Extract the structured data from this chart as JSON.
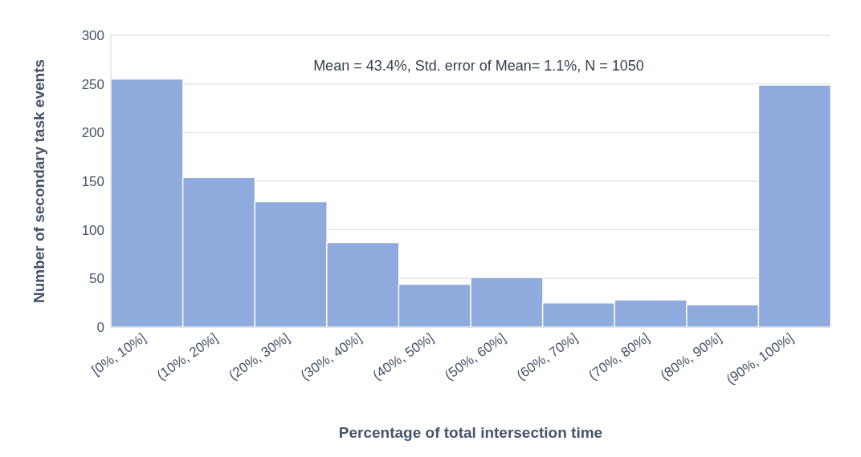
{
  "chart_data": {
    "type": "bar",
    "categories": [
      "[0%, 10%]",
      "(10%, 20%]",
      "(20%, 30%]",
      "(30%, 40%]",
      "(40%, 50%]",
      "(50%, 60%]",
      "(60%, 70%]",
      "(70%, 80%]",
      "(80%, 90%]",
      "(90%, 100%]"
    ],
    "values": [
      255,
      154,
      129,
      87,
      44,
      51,
      25,
      28,
      23,
      249
    ],
    "color": "#8faadc",
    "xlabel": "Percentage of total intersection time",
    "ylabel": "Number of secondary task events",
    "annotations": [
      "Mean = 43.4%, Std. error of Mean= 1.1%, N = 1050"
    ],
    "ylim": [
      0,
      300
    ],
    "yticks": [
      0,
      50,
      100,
      150,
      200,
      250,
      300
    ],
    "grid": "y"
  }
}
